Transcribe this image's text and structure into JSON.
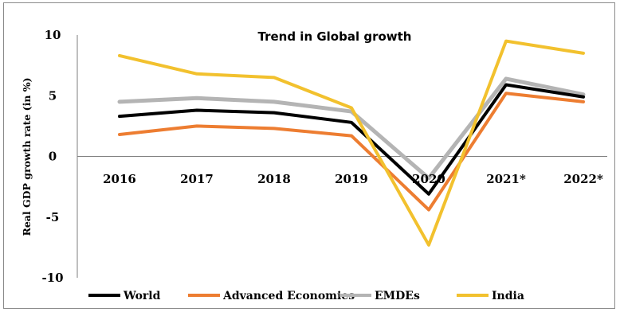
{
  "chart_data": {
    "type": "line",
    "title": "Trend in Global growth",
    "ylabel": "Real GDP growth rate (in %)",
    "xlabel": "",
    "categories": [
      "2016",
      "2017",
      "2018",
      "2019",
      "2020",
      "2021*",
      "2022*"
    ],
    "ylim": [
      -10,
      10
    ],
    "yticks": [
      10,
      5,
      0,
      -5,
      -10
    ],
    "grid": false,
    "legend_position": "bottom",
    "series": [
      {
        "name": "World",
        "color": "#000000",
        "values": [
          3.3,
          3.8,
          3.6,
          2.8,
          -3.1,
          5.9,
          4.9
        ]
      },
      {
        "name": "Advanced Economies",
        "color": "#ed7d31",
        "values": [
          1.8,
          2.5,
          2.3,
          1.7,
          -4.4,
          5.2,
          4.5
        ]
      },
      {
        "name": "EMDEs",
        "color": "#b4b4b4",
        "values": [
          4.5,
          4.8,
          4.5,
          3.7,
          -1.8,
          6.4,
          5.1
        ]
      },
      {
        "name": "India",
        "color": "#f2c12e",
        "values": [
          8.3,
          6.8,
          6.5,
          4.0,
          -7.3,
          9.5,
          8.5
        ]
      }
    ]
  }
}
